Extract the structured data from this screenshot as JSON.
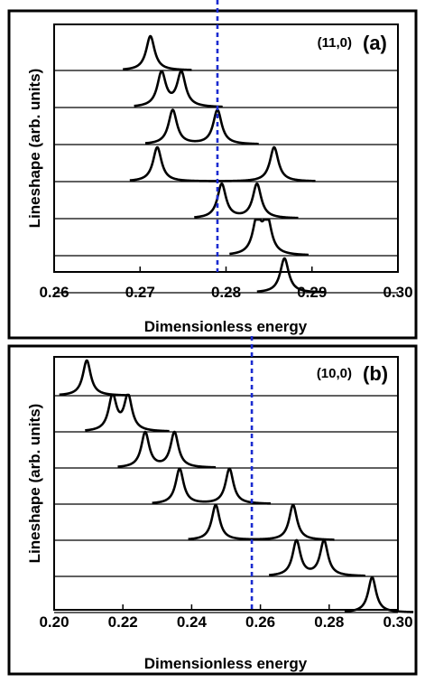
{
  "chart_data": [
    {
      "type": "line",
      "panel_label": "(a)",
      "annotation": "(11,0)",
      "xlabel": "Dimensionless energy",
      "ylabel": "Lineshape (arb. units)",
      "xlim": [
        0.26,
        0.3
      ],
      "x_ticks": [
        "0.26",
        "0.27",
        "0.28",
        "0.29",
        "0.30"
      ],
      "reference_line_x": 0.279,
      "grid": false,
      "series": [
        {
          "peaks": [
            0.2712
          ]
        },
        {
          "peaks": [
            0.2725,
            0.2748
          ]
        },
        {
          "peaks": [
            0.2738,
            0.279
          ]
        },
        {
          "peaks": [
            0.272,
            0.2856
          ]
        },
        {
          "peaks": [
            0.2795,
            0.2836
          ]
        },
        {
          "peaks": [
            0.2836,
            0.2848
          ]
        },
        {
          "peaks": [
            0.2868
          ]
        }
      ]
    },
    {
      "type": "line",
      "panel_label": "(b)",
      "annotation": "(10,0)",
      "xlabel": "Dimensionless energy",
      "ylabel": "Lineshape (arb. units)",
      "xlim": [
        0.2,
        0.3
      ],
      "x_ticks": [
        "0.20",
        "0.22",
        "0.24",
        "0.26",
        "0.28",
        "0.30"
      ],
      "reference_line_x": 0.2575,
      "grid": false,
      "series": [
        {
          "peaks": [
            0.2095
          ]
        },
        {
          "peaks": [
            0.217,
            0.2215
          ]
        },
        {
          "peaks": [
            0.2265,
            0.235
          ]
        },
        {
          "peaks": [
            0.2365,
            0.251
          ]
        },
        {
          "peaks": [
            0.247,
            0.2695
          ]
        },
        {
          "peaks": [
            0.2705,
            0.2785
          ]
        },
        {
          "peaks": [
            0.2925
          ]
        }
      ]
    }
  ]
}
